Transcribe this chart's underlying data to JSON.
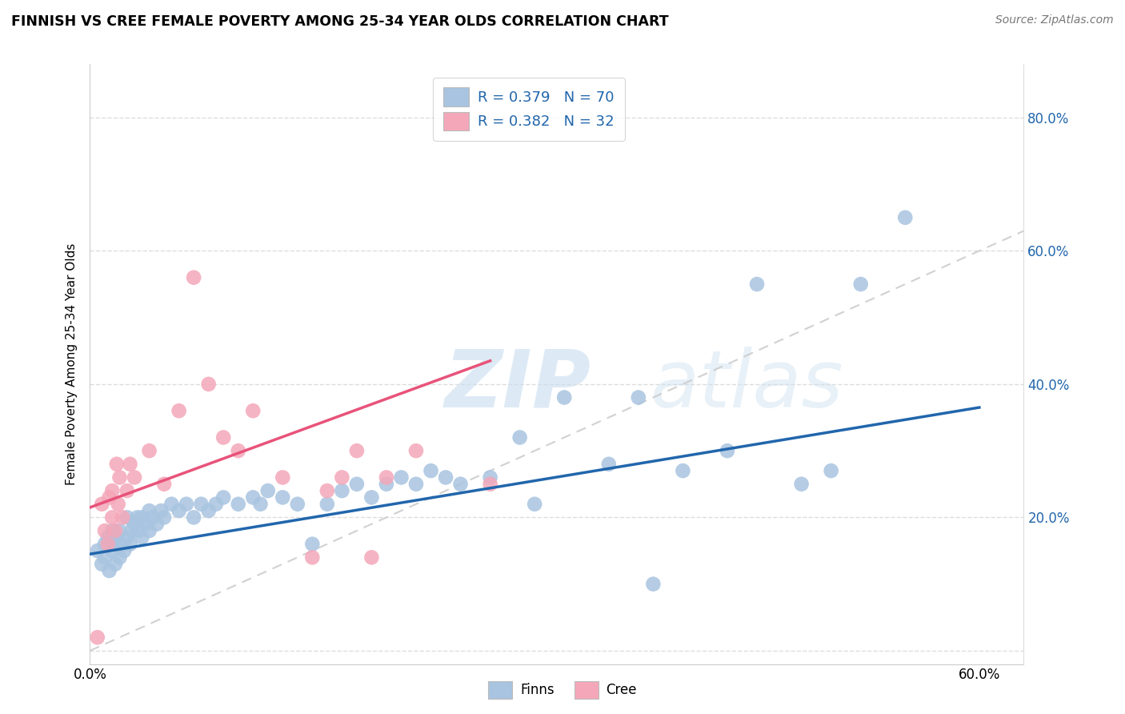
{
  "title": "FINNISH VS CREE FEMALE POVERTY AMONG 25-34 YEAR OLDS CORRELATION CHART",
  "source": "Source: ZipAtlas.com",
  "ylabel": "Female Poverty Among 25-34 Year Olds",
  "xlim": [
    0.0,
    0.63
  ],
  "ylim": [
    -0.02,
    0.88
  ],
  "color_finns": "#a8c4e0",
  "color_cree": "#f4a7b9",
  "color_finns_line": "#2166ac",
  "color_cree_line": "#e8537a",
  "color_diag_line": "#cccccc",
  "color_grid": "#dddddd",
  "color_text_blue": "#2166ac",
  "legend_r_finns": "R = 0.379",
  "legend_n_finns": "N = 70",
  "legend_r_cree": "R = 0.382",
  "legend_n_cree": "N = 32",
  "legend_label_finns": "Finns",
  "legend_label_cree": "Cree",
  "finns_regression_x0": 0.0,
  "finns_regression_y0": 0.145,
  "finns_regression_x1": 0.6,
  "finns_regression_y1": 0.365,
  "cree_regression_x0": 0.0,
  "cree_regression_y0": 0.215,
  "cree_regression_x1": 0.27,
  "cree_regression_y1": 0.435,
  "finns_x": [
    0.005,
    0.008,
    0.01,
    0.01,
    0.012,
    0.013,
    0.015,
    0.015,
    0.016,
    0.017,
    0.018,
    0.02,
    0.02,
    0.022,
    0.023,
    0.025,
    0.025,
    0.027,
    0.028,
    0.03,
    0.032,
    0.033,
    0.035,
    0.035,
    0.038,
    0.04,
    0.04,
    0.042,
    0.045,
    0.048,
    0.05,
    0.055,
    0.06,
    0.065,
    0.07,
    0.075,
    0.08,
    0.085,
    0.09,
    0.1,
    0.11,
    0.115,
    0.12,
    0.13,
    0.14,
    0.15,
    0.16,
    0.17,
    0.18,
    0.19,
    0.2,
    0.21,
    0.22,
    0.23,
    0.24,
    0.25,
    0.27,
    0.29,
    0.3,
    0.32,
    0.35,
    0.37,
    0.38,
    0.4,
    0.43,
    0.45,
    0.48,
    0.5,
    0.52,
    0.55
  ],
  "finns_y": [
    0.15,
    0.13,
    0.14,
    0.16,
    0.17,
    0.12,
    0.15,
    0.18,
    0.16,
    0.13,
    0.17,
    0.14,
    0.18,
    0.16,
    0.15,
    0.17,
    0.2,
    0.16,
    0.18,
    0.19,
    0.2,
    0.18,
    0.2,
    0.17,
    0.19,
    0.21,
    0.18,
    0.2,
    0.19,
    0.21,
    0.2,
    0.22,
    0.21,
    0.22,
    0.2,
    0.22,
    0.21,
    0.22,
    0.23,
    0.22,
    0.23,
    0.22,
    0.24,
    0.23,
    0.22,
    0.16,
    0.22,
    0.24,
    0.25,
    0.23,
    0.25,
    0.26,
    0.25,
    0.27,
    0.26,
    0.25,
    0.26,
    0.32,
    0.22,
    0.38,
    0.28,
    0.38,
    0.1,
    0.27,
    0.3,
    0.55,
    0.25,
    0.27,
    0.55,
    0.65
  ],
  "cree_x": [
    0.005,
    0.008,
    0.01,
    0.012,
    0.013,
    0.015,
    0.015,
    0.017,
    0.018,
    0.019,
    0.02,
    0.022,
    0.025,
    0.027,
    0.03,
    0.04,
    0.05,
    0.06,
    0.07,
    0.08,
    0.09,
    0.1,
    0.11,
    0.13,
    0.15,
    0.16,
    0.17,
    0.18,
    0.19,
    0.2,
    0.22,
    0.27
  ],
  "cree_y": [
    0.02,
    0.22,
    0.18,
    0.16,
    0.23,
    0.2,
    0.24,
    0.18,
    0.28,
    0.22,
    0.26,
    0.2,
    0.24,
    0.28,
    0.26,
    0.3,
    0.25,
    0.36,
    0.56,
    0.4,
    0.32,
    0.3,
    0.36,
    0.26,
    0.14,
    0.24,
    0.26,
    0.3,
    0.14,
    0.26,
    0.3,
    0.25
  ]
}
